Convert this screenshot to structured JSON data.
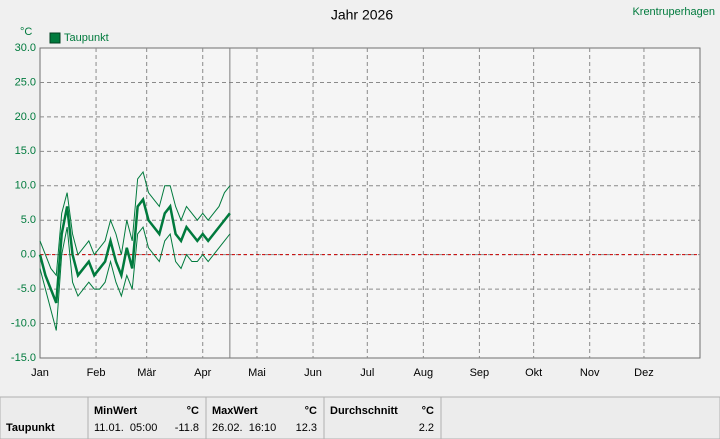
{
  "chart_data": {
    "type": "line",
    "title": "Jahr 2026",
    "location": "Krentruperhagen",
    "y_unit": "°C",
    "x": [
      0,
      3,
      6,
      9,
      12,
      15,
      18,
      21,
      24,
      27,
      30,
      33,
      36,
      39,
      42,
      45,
      48,
      51,
      54,
      57,
      60,
      63,
      66,
      69,
      72,
      75,
      78,
      81,
      84,
      87,
      90,
      93,
      96,
      99,
      102,
      105
    ],
    "series": [
      {
        "name": "Taupunkt",
        "color": "#007a3d",
        "values": [
          0,
          -3,
          -5,
          -7,
          3,
          7,
          0,
          -3,
          -2,
          -1,
          -3,
          -2,
          -1,
          2,
          -1,
          -3,
          1,
          -2,
          7,
          8,
          5,
          4,
          3,
          6,
          7,
          3,
          2,
          4,
          3,
          2,
          3,
          2,
          3,
          4,
          5,
          6
        ]
      },
      {
        "color": "#007a3d",
        "values": [
          -2,
          -5,
          -8,
          -11,
          0,
          4,
          -4,
          -6,
          -5,
          -4,
          -5,
          -5,
          -4,
          -1,
          -4,
          -6,
          -3,
          -5,
          3,
          4,
          1,
          0,
          -1,
          2,
          3,
          -1,
          -2,
          0,
          -1,
          -1,
          0,
          -1,
          0,
          1,
          2,
          3
        ]
      },
      {
        "color": "#007a3d",
        "values": [
          2,
          0,
          -2,
          -3,
          6,
          9,
          3,
          0,
          1,
          2,
          0,
          1,
          2,
          5,
          3,
          0,
          5,
          2,
          11,
          12,
          9,
          8,
          7,
          10,
          10,
          7,
          5,
          7,
          6,
          5,
          6,
          5,
          6,
          7,
          9,
          10
        ]
      }
    ],
    "xlim": [
      0,
      365
    ],
    "xticks": [
      {
        "value": 0,
        "label": "Jan"
      },
      {
        "value": 31,
        "label": "Feb"
      },
      {
        "value": 59,
        "label": "Mär"
      },
      {
        "value": 90,
        "label": "Apr"
      },
      {
        "value": 120,
        "label": "Mai"
      },
      {
        "value": 151,
        "label": "Jun"
      },
      {
        "value": 181,
        "label": "Jul"
      },
      {
        "value": 212,
        "label": "Aug"
      },
      {
        "value": 243,
        "label": "Sep"
      },
      {
        "value": 273,
        "label": "Okt"
      },
      {
        "value": 304,
        "label": "Nov"
      },
      {
        "value": 334,
        "label": "Dez"
      }
    ],
    "ylim": [
      -15,
      30
    ],
    "yticks": [
      {
        "value": 30,
        "label": "30.0"
      },
      {
        "value": 25,
        "label": "25.0"
      },
      {
        "value": 20,
        "label": "20.0"
      },
      {
        "value": 15,
        "label": "15.0"
      },
      {
        "value": 10,
        "label": "10.0"
      },
      {
        "value": 5,
        "label": "5.0"
      },
      {
        "value": 0,
        "label": "0.0"
      },
      {
        "value": -5,
        "label": "-5.0"
      },
      {
        "value": -10,
        "label": "-10.0"
      },
      {
        "value": -15,
        "label": "-15.0"
      }
    ],
    "grid": true,
    "legend": "top-left"
  },
  "summary": {
    "row_label": "Taupunkt",
    "min": {
      "header": "MinWert",
      "unit": "°C",
      "time": "11.01.  05:00",
      "value": -11.8
    },
    "max": {
      "header": "MaxWert",
      "unit": "°C",
      "time": "26.02.  16:10",
      "value": 12.3
    },
    "avg": {
      "header": "Durchschnitt",
      "unit": "°C",
      "value": 2.2
    }
  }
}
